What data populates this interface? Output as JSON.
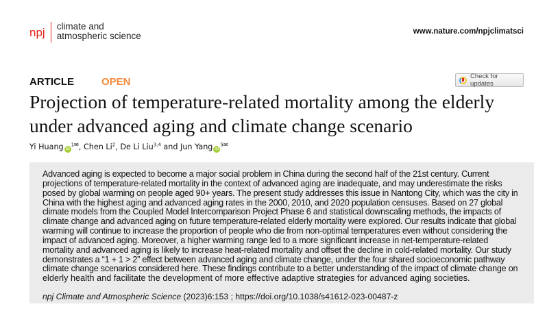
{
  "header": {
    "logo_text": "npj",
    "journal_line1": "climate and",
    "journal_line2": "atmospheric science",
    "url": "www.nature.com/npjclimatsci"
  },
  "article": {
    "type": "ARTICLE",
    "access": "OPEN",
    "check_updates": "Check for updates",
    "title_line1": "Projection of temperature-related mortality among the elderly",
    "title_line2": "under advanced aging and climate change scenario",
    "authors": [
      {
        "name": "Yi Huang",
        "aff": "1",
        "orcid": true,
        "corresponding": true
      },
      {
        "name": "Chen Li",
        "aff": "2",
        "orcid": false,
        "corresponding": false
      },
      {
        "name": "De Li Liu",
        "aff": "3,4",
        "orcid": false,
        "corresponding": false
      },
      {
        "name": "Jun Yang",
        "aff": "5",
        "orcid": true,
        "corresponding": true
      }
    ],
    "author_sep1": ", ",
    "author_sep2": ", ",
    "author_sep3": " and ",
    "orcid_label": "iD",
    "mail_icon": "✉",
    "abstract_lines": [
      "Advanced aging is expected to become a major social problem in China during the second half of the 21st century. Current",
      "projections of temperature-related mortality in the context of advanced aging are inadequate, and may underestimate the risks",
      "posed by global warming on people aged 90+ years. The present study addresses this issue in Nantong City, which was the city in",
      "China with the highest aging and advanced aging rates in the 2000, 2010, and 2020 population censuses. Based on 27 global",
      "climate models from the Coupled Model Intercomparison Project Phase 6 and statistical downscaling methods, the impacts of",
      "climate change and advanced aging on future temperature-related elderly mortality were explored. Our results indicate that global",
      "warming will continue to increase the proportion of people who die from non-optimal temperatures even without considering the",
      "impact of advanced aging. Moreover, a higher warming range led to a more significant increase in net-temperature-related",
      "mortality and advanced aging is likely to increase heat-related mortality and offset the decline in cold-related mortality. Our study",
      "demonstrates a “1 + 1 > 2” effect between advanced aging and climate change, under the four shared socioeconomic pathway",
      "climate change scenarios considered here. These findings contribute to a better understanding of the impact of climate change on",
      "elderly health and facilitate the development of more effective adaptive strategies for advanced aging societies."
    ],
    "citation_journal": "npj Climate and Atmospheric Science",
    "citation_rest": " (2023)6:153 ; https://doi.org/10.1038/s41612-023-00487-z"
  },
  "colors": {
    "brand_red": "#e2231a",
    "open_orange": "#f7883a",
    "orcid_green": "#a6ce39",
    "abstract_bg": "#ebebeb"
  }
}
